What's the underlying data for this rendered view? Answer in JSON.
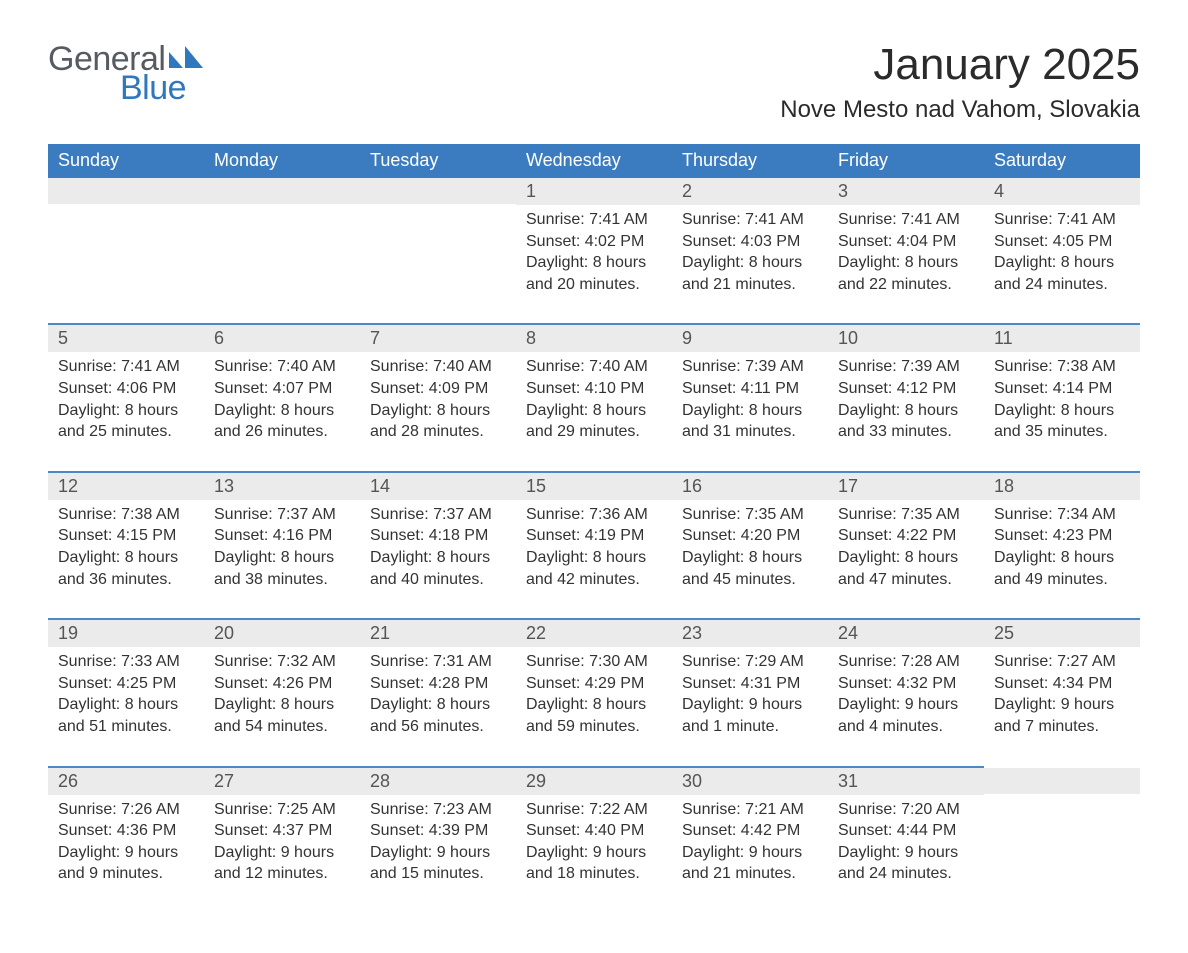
{
  "logo": {
    "word1": "General",
    "word2": "Blue",
    "word1_color": "#555b61",
    "word2_color": "#2f78bd",
    "mark_color": "#2f78bd"
  },
  "title": "January 2025",
  "location": "Nove Mesto nad Vahom, Slovakia",
  "colors": {
    "header_bg": "#3a7cbf",
    "header_text": "#ffffff",
    "daynum_band_bg": "#ebebeb",
    "divider": "#4a88c6",
    "body_text": "#333333",
    "title_text": "#2b2b2b",
    "page_bg": "#ffffff"
  },
  "typography": {
    "title_fontsize": 44,
    "location_fontsize": 24,
    "dow_fontsize": 18,
    "daynum_fontsize": 18,
    "body_fontsize": 16,
    "logo_fontsize": 34
  },
  "days_of_week": [
    "Sunday",
    "Monday",
    "Tuesday",
    "Wednesday",
    "Thursday",
    "Friday",
    "Saturday"
  ],
  "weeks": [
    [
      {
        "empty": true
      },
      {
        "empty": true
      },
      {
        "empty": true
      },
      {
        "num": "1",
        "sunrise": "Sunrise: 7:41 AM",
        "sunset": "Sunset: 4:02 PM",
        "daylight": "Daylight: 8 hours and 20 minutes."
      },
      {
        "num": "2",
        "sunrise": "Sunrise: 7:41 AM",
        "sunset": "Sunset: 4:03 PM",
        "daylight": "Daylight: 8 hours and 21 minutes."
      },
      {
        "num": "3",
        "sunrise": "Sunrise: 7:41 AM",
        "sunset": "Sunset: 4:04 PM",
        "daylight": "Daylight: 8 hours and 22 minutes."
      },
      {
        "num": "4",
        "sunrise": "Sunrise: 7:41 AM",
        "sunset": "Sunset: 4:05 PM",
        "daylight": "Daylight: 8 hours and 24 minutes."
      }
    ],
    [
      {
        "num": "5",
        "sunrise": "Sunrise: 7:41 AM",
        "sunset": "Sunset: 4:06 PM",
        "daylight": "Daylight: 8 hours and 25 minutes."
      },
      {
        "num": "6",
        "sunrise": "Sunrise: 7:40 AM",
        "sunset": "Sunset: 4:07 PM",
        "daylight": "Daylight: 8 hours and 26 minutes."
      },
      {
        "num": "7",
        "sunrise": "Sunrise: 7:40 AM",
        "sunset": "Sunset: 4:09 PM",
        "daylight": "Daylight: 8 hours and 28 minutes."
      },
      {
        "num": "8",
        "sunrise": "Sunrise: 7:40 AM",
        "sunset": "Sunset: 4:10 PM",
        "daylight": "Daylight: 8 hours and 29 minutes."
      },
      {
        "num": "9",
        "sunrise": "Sunrise: 7:39 AM",
        "sunset": "Sunset: 4:11 PM",
        "daylight": "Daylight: 8 hours and 31 minutes."
      },
      {
        "num": "10",
        "sunrise": "Sunrise: 7:39 AM",
        "sunset": "Sunset: 4:12 PM",
        "daylight": "Daylight: 8 hours and 33 minutes."
      },
      {
        "num": "11",
        "sunrise": "Sunrise: 7:38 AM",
        "sunset": "Sunset: 4:14 PM",
        "daylight": "Daylight: 8 hours and 35 minutes."
      }
    ],
    [
      {
        "num": "12",
        "sunrise": "Sunrise: 7:38 AM",
        "sunset": "Sunset: 4:15 PM",
        "daylight": "Daylight: 8 hours and 36 minutes."
      },
      {
        "num": "13",
        "sunrise": "Sunrise: 7:37 AM",
        "sunset": "Sunset: 4:16 PM",
        "daylight": "Daylight: 8 hours and 38 minutes."
      },
      {
        "num": "14",
        "sunrise": "Sunrise: 7:37 AM",
        "sunset": "Sunset: 4:18 PM",
        "daylight": "Daylight: 8 hours and 40 minutes."
      },
      {
        "num": "15",
        "sunrise": "Sunrise: 7:36 AM",
        "sunset": "Sunset: 4:19 PM",
        "daylight": "Daylight: 8 hours and 42 minutes."
      },
      {
        "num": "16",
        "sunrise": "Sunrise: 7:35 AM",
        "sunset": "Sunset: 4:20 PM",
        "daylight": "Daylight: 8 hours and 45 minutes."
      },
      {
        "num": "17",
        "sunrise": "Sunrise: 7:35 AM",
        "sunset": "Sunset: 4:22 PM",
        "daylight": "Daylight: 8 hours and 47 minutes."
      },
      {
        "num": "18",
        "sunrise": "Sunrise: 7:34 AM",
        "sunset": "Sunset: 4:23 PM",
        "daylight": "Daylight: 8 hours and 49 minutes."
      }
    ],
    [
      {
        "num": "19",
        "sunrise": "Sunrise: 7:33 AM",
        "sunset": "Sunset: 4:25 PM",
        "daylight": "Daylight: 8 hours and 51 minutes."
      },
      {
        "num": "20",
        "sunrise": "Sunrise: 7:32 AM",
        "sunset": "Sunset: 4:26 PM",
        "daylight": "Daylight: 8 hours and 54 minutes."
      },
      {
        "num": "21",
        "sunrise": "Sunrise: 7:31 AM",
        "sunset": "Sunset: 4:28 PM",
        "daylight": "Daylight: 8 hours and 56 minutes."
      },
      {
        "num": "22",
        "sunrise": "Sunrise: 7:30 AM",
        "sunset": "Sunset: 4:29 PM",
        "daylight": "Daylight: 8 hours and 59 minutes."
      },
      {
        "num": "23",
        "sunrise": "Sunrise: 7:29 AM",
        "sunset": "Sunset: 4:31 PM",
        "daylight": "Daylight: 9 hours and 1 minute."
      },
      {
        "num": "24",
        "sunrise": "Sunrise: 7:28 AM",
        "sunset": "Sunset: 4:32 PM",
        "daylight": "Daylight: 9 hours and 4 minutes."
      },
      {
        "num": "25",
        "sunrise": "Sunrise: 7:27 AM",
        "sunset": "Sunset: 4:34 PM",
        "daylight": "Daylight: 9 hours and 7 minutes."
      }
    ],
    [
      {
        "num": "26",
        "sunrise": "Sunrise: 7:26 AM",
        "sunset": "Sunset: 4:36 PM",
        "daylight": "Daylight: 9 hours and 9 minutes."
      },
      {
        "num": "27",
        "sunrise": "Sunrise: 7:25 AM",
        "sunset": "Sunset: 4:37 PM",
        "daylight": "Daylight: 9 hours and 12 minutes."
      },
      {
        "num": "28",
        "sunrise": "Sunrise: 7:23 AM",
        "sunset": "Sunset: 4:39 PM",
        "daylight": "Daylight: 9 hours and 15 minutes."
      },
      {
        "num": "29",
        "sunrise": "Sunrise: 7:22 AM",
        "sunset": "Sunset: 4:40 PM",
        "daylight": "Daylight: 9 hours and 18 minutes."
      },
      {
        "num": "30",
        "sunrise": "Sunrise: 7:21 AM",
        "sunset": "Sunset: 4:42 PM",
        "daylight": "Daylight: 9 hours and 21 minutes."
      },
      {
        "num": "31",
        "sunrise": "Sunrise: 7:20 AM",
        "sunset": "Sunset: 4:44 PM",
        "daylight": "Daylight: 9 hours and 24 minutes."
      },
      {
        "empty": true
      }
    ]
  ]
}
